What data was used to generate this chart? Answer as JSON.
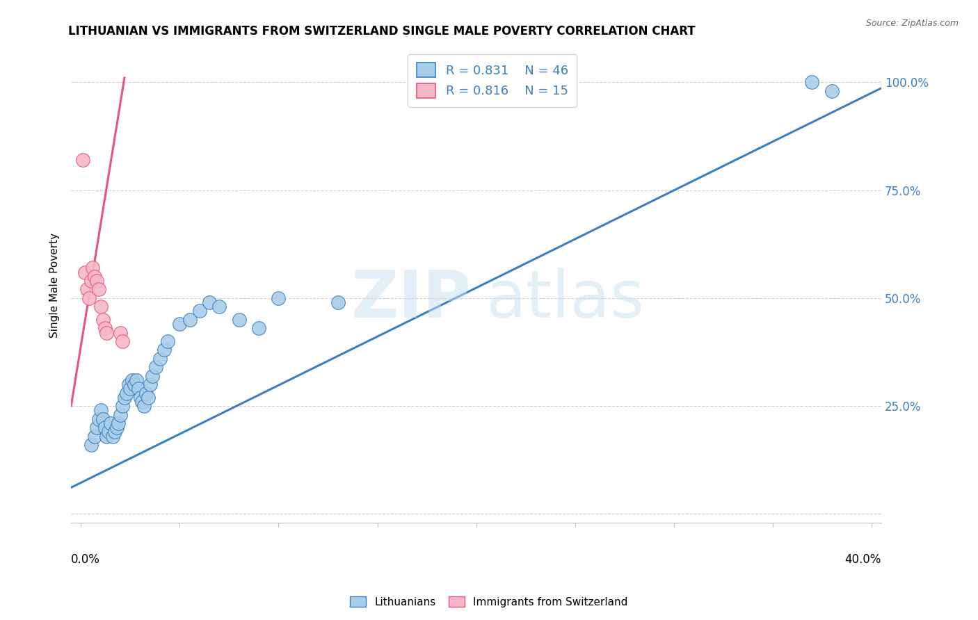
{
  "title": "LITHUANIAN VS IMMIGRANTS FROM SWITZERLAND SINGLE MALE POVERTY CORRELATION CHART",
  "source": "Source: ZipAtlas.com",
  "ylabel": "Single Male Poverty",
  "blue_r": "0.831",
  "blue_n": "46",
  "pink_r": "0.816",
  "pink_n": "15",
  "blue_color": "#a8cde8",
  "pink_color": "#f4b8c8",
  "trend_blue": "#3a7fc1",
  "trend_pink": "#e8547a",
  "legend_blue_label": "Lithuanians",
  "legend_pink_label": "Immigrants from Switzerland",
  "xlim": [
    0.0,
    0.4
  ],
  "ylim": [
    0.0,
    1.04
  ],
  "xtick_positions": [
    0.0,
    0.05,
    0.1,
    0.15,
    0.2,
    0.25,
    0.3,
    0.35,
    0.4
  ],
  "ytick_positions": [
    0.0,
    0.25,
    0.5,
    0.75,
    1.0
  ],
  "ytick_labels": [
    "",
    "25.0%",
    "50.0%",
    "75.0%",
    "100.0%"
  ],
  "blue_dots_x": [
    0.005,
    0.007,
    0.008,
    0.009,
    0.01,
    0.011,
    0.012,
    0.013,
    0.014,
    0.015,
    0.016,
    0.017,
    0.018,
    0.019,
    0.02,
    0.021,
    0.022,
    0.023,
    0.024,
    0.025,
    0.026,
    0.027,
    0.028,
    0.029,
    0.03,
    0.031,
    0.032,
    0.033,
    0.034,
    0.035,
    0.036,
    0.038,
    0.04,
    0.042,
    0.044,
    0.05,
    0.055,
    0.06,
    0.065,
    0.07,
    0.08,
    0.09,
    0.1,
    0.13,
    0.37,
    0.38
  ],
  "blue_dots_y": [
    0.16,
    0.18,
    0.2,
    0.22,
    0.24,
    0.22,
    0.2,
    0.18,
    0.19,
    0.21,
    0.18,
    0.19,
    0.2,
    0.21,
    0.23,
    0.25,
    0.27,
    0.28,
    0.3,
    0.29,
    0.31,
    0.3,
    0.31,
    0.29,
    0.27,
    0.26,
    0.25,
    0.28,
    0.27,
    0.3,
    0.32,
    0.34,
    0.36,
    0.38,
    0.4,
    0.44,
    0.45,
    0.47,
    0.49,
    0.48,
    0.45,
    0.43,
    0.5,
    0.49,
    1.0,
    0.98
  ],
  "pink_dots_x": [
    0.001,
    0.002,
    0.003,
    0.004,
    0.005,
    0.006,
    0.007,
    0.008,
    0.009,
    0.01,
    0.011,
    0.012,
    0.013,
    0.02,
    0.021
  ],
  "pink_dots_y": [
    0.82,
    0.56,
    0.52,
    0.5,
    0.54,
    0.57,
    0.55,
    0.54,
    0.52,
    0.48,
    0.45,
    0.43,
    0.42,
    0.42,
    0.4
  ],
  "blue_line_x": [
    -0.01,
    0.42
  ],
  "blue_line_y": [
    0.05,
    1.02
  ],
  "pink_line_x": [
    -0.005,
    0.022
  ],
  "pink_line_y": [
    0.25,
    1.01
  ]
}
